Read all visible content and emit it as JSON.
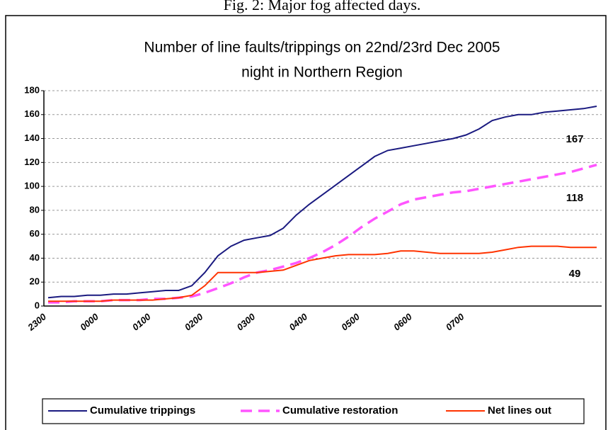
{
  "caption": "Fig. 2: Major fog affected days.",
  "chart_data": {
    "type": "line",
    "title": [
      "Number of line faults/trippings on 22nd/23rd Dec 2005",
      "night in Northern Region"
    ],
    "categories": [
      "2300",
      null,
      null,
      null,
      "0000",
      null,
      null,
      null,
      "0100",
      null,
      null,
      null,
      "0200",
      null,
      null,
      null,
      "0300",
      null,
      null,
      null,
      "0400",
      null,
      null,
      null,
      "0500",
      null,
      null,
      null,
      "0600",
      null,
      null,
      null,
      "0700",
      null,
      null,
      null,
      null,
      null,
      null,
      null,
      null,
      null,
      null
    ],
    "series": [
      {
        "name": "Cumulative trippings",
        "color": "#1a1a80",
        "dash": false,
        "values": [
          7,
          8,
          8,
          9,
          9,
          10,
          10,
          11,
          12,
          13,
          13,
          17,
          28,
          42,
          50,
          55,
          57,
          59,
          65,
          76,
          85,
          93,
          101,
          109,
          117,
          125,
          130,
          132,
          134,
          136,
          138,
          140,
          143,
          148,
          155,
          158,
          160,
          160,
          162,
          163,
          164,
          165,
          167
        ]
      },
      {
        "name": "Cumulative restoration",
        "color": "#ff55ff",
        "dash": true,
        "values": [
          3,
          3,
          4,
          4,
          4,
          5,
          5,
          5,
          6,
          6,
          7,
          8,
          11,
          15,
          19,
          24,
          28,
          30,
          33,
          36,
          40,
          45,
          51,
          58,
          66,
          73,
          79,
          85,
          89,
          91,
          93,
          95,
          96,
          98,
          100,
          102,
          104,
          106,
          108,
          110,
          112,
          115,
          118
        ]
      },
      {
        "name": "Net lines out",
        "color": "#ff3300",
        "dash": false,
        "values": [
          4,
          4,
          4,
          4,
          4,
          5,
          5,
          5,
          5,
          6,
          7,
          9,
          17,
          28,
          28,
          28,
          28,
          29,
          30,
          34,
          38,
          40,
          42,
          43,
          43,
          43,
          44,
          46,
          46,
          45,
          44,
          44,
          44,
          44,
          45,
          47,
          49,
          50,
          50,
          50,
          49,
          49,
          49
        ]
      }
    ],
    "annotations": [
      "167",
      "118",
      "49"
    ],
    "ylim": [
      0,
      180
    ],
    "yticks": [
      0,
      20,
      40,
      60,
      80,
      100,
      120,
      140,
      160,
      180
    ],
    "grid": true,
    "legend": "bottom"
  }
}
